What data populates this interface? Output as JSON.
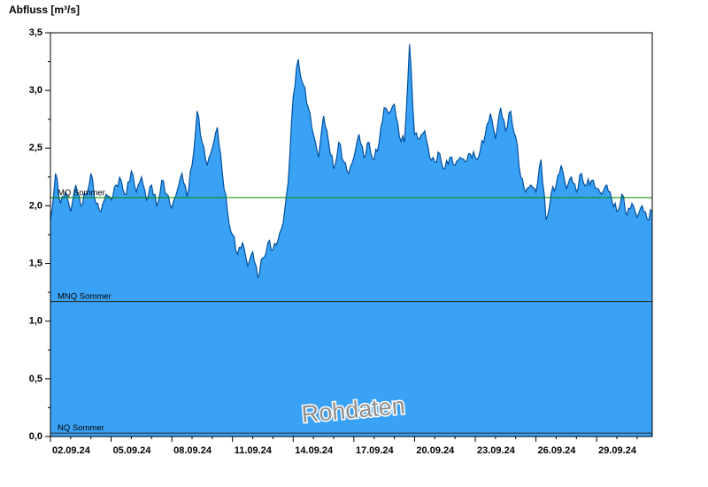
{
  "header": {
    "title": "Abfluss [m³/s]"
  },
  "watermark": "Rohdaten",
  "colors": {
    "area_fill": "#3aa2f5",
    "line": "#004f9e",
    "axis": "#000000",
    "mq_line": "#008a00",
    "mnq_line": "#2b2b2b",
    "nq_line": "#2b2b2b",
    "watermark": "#8f8f8f"
  },
  "chart_data": {
    "type": "area",
    "title": "Abfluss [m³/s]",
    "xlabel": "",
    "ylabel": "Abfluss [m³/s]",
    "ylim": [
      0,
      3.5
    ],
    "x_range_days": [
      0,
      29.75
    ],
    "grid": false,
    "legend": "none",
    "y_ticks": [
      {
        "value": 0.0,
        "label": "0,0"
      },
      {
        "value": 0.5,
        "label": "0,5"
      },
      {
        "value": 1.0,
        "label": "1,0"
      },
      {
        "value": 1.5,
        "label": "1,5"
      },
      {
        "value": 2.0,
        "label": "2,0"
      },
      {
        "value": 2.5,
        "label": "2,5"
      },
      {
        "value": 3.0,
        "label": "3,0"
      },
      {
        "value": 3.5,
        "label": "3,5"
      }
    ],
    "x_ticks": [
      {
        "day": 0,
        "label": "02.09.24"
      },
      {
        "day": 3,
        "label": "05.09.24"
      },
      {
        "day": 6,
        "label": "08.09.24"
      },
      {
        "day": 9,
        "label": "11.09.24"
      },
      {
        "day": 12,
        "label": "14.09.24"
      },
      {
        "day": 15,
        "label": "17.09.24"
      },
      {
        "day": 18,
        "label": "20.09.24"
      },
      {
        "day": 21,
        "label": "23.09.24"
      },
      {
        "day": 24,
        "label": "26.09.24"
      },
      {
        "day": 27,
        "label": "29.09.24"
      }
    ],
    "reference_lines": [
      {
        "name": "mq-sommer",
        "label": "MQ Sommer",
        "value": 2.07,
        "color_key": "mq_line"
      },
      {
        "name": "mnq-sommer",
        "label": "MNQ Sommer",
        "value": 1.17,
        "color_key": "mnq_line"
      },
      {
        "name": "nq-sommer",
        "label": "NQ Sommer",
        "value": 0.03,
        "color_key": "nq_line"
      }
    ],
    "series": [
      {
        "name": "Abfluss Rohdaten",
        "start": "02.09.24",
        "interval_hours": 6,
        "unit": "m³/s",
        "values": [
          1.88,
          2.28,
          2.02,
          2.12,
          1.95,
          2.18,
          2.0,
          2.1,
          2.28,
          2.02,
          1.95,
          2.1,
          2.05,
          2.18,
          2.22,
          2.1,
          2.3,
          2.12,
          2.25,
          2.05,
          2.18,
          2.0,
          2.22,
          2.1,
          1.98,
          2.12,
          2.28,
          2.08,
          2.35,
          2.82,
          2.55,
          2.35,
          2.5,
          2.68,
          2.28,
          1.95,
          1.75,
          1.58,
          1.68,
          1.48,
          1.6,
          1.38,
          1.55,
          1.68,
          1.62,
          1.7,
          1.85,
          2.2,
          2.95,
          3.27,
          3.05,
          2.85,
          2.62,
          2.42,
          2.78,
          2.55,
          2.32,
          2.55,
          2.38,
          2.28,
          2.42,
          2.62,
          2.42,
          2.55,
          2.4,
          2.55,
          2.85,
          2.8,
          2.88,
          2.6,
          2.55,
          3.4,
          2.62,
          2.58,
          2.65,
          2.42,
          2.38,
          2.45,
          2.32,
          2.42,
          2.35,
          2.42,
          2.38,
          2.45,
          2.42,
          2.48,
          2.62,
          2.8,
          2.58,
          2.85,
          2.65,
          2.82,
          2.6,
          2.25,
          2.12,
          2.18,
          2.12,
          2.4,
          1.88,
          2.1,
          2.18,
          2.35,
          2.15,
          2.25,
          2.12,
          2.28,
          2.18,
          2.22,
          2.15,
          2.1,
          2.18,
          2.05,
          1.95,
          2.1,
          1.92,
          2.02,
          1.9,
          2.0,
          1.88,
          1.95
        ]
      }
    ]
  }
}
